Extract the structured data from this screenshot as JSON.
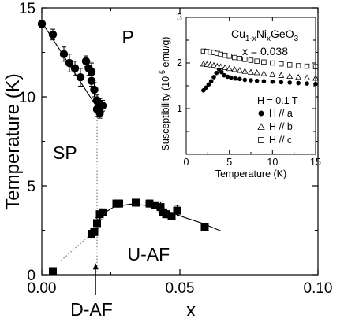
{
  "chart_data": [
    {
      "type": "scatter",
      "xlabel": "x",
      "ylabel": "Temperature (K)",
      "xlim": [
        0,
        0.1
      ],
      "ylim": [
        0,
        15
      ],
      "xticks": [
        0,
        0.05,
        0.1
      ],
      "xtick_labels": [
        "0.00",
        "0.05",
        "0.10"
      ],
      "yticks": [
        0,
        5,
        10,
        15
      ],
      "ytick_labels": [
        "0",
        "5",
        "10",
        "15"
      ],
      "phase_labels": [
        {
          "text": "P",
          "x": 0.029,
          "y": 13.0
        },
        {
          "text": "SP",
          "x": 0.004,
          "y": 6.5
        },
        {
          "text": "U-AF",
          "x": 0.031,
          "y": 0.8
        }
      ],
      "annotation": {
        "text": "D-AF",
        "x": 0.018,
        "y": -2.3,
        "arrow_to": [
          0.0195,
          0.65
        ]
      },
      "series": [
        {
          "marker": "circle",
          "points": [
            [
              0.0,
              14.1,
              0.2
            ],
            [
              0.004,
              13.5,
              0.3
            ],
            [
              0.008,
              12.4,
              0.4
            ],
            [
              0.01,
              11.9,
              0.5
            ],
            [
              0.012,
              11.6,
              0.4
            ],
            [
              0.014,
              11.1,
              0.5
            ],
            [
              0.016,
              12.0,
              0.3
            ],
            [
              0.017,
              11.6,
              0.4
            ],
            [
              0.018,
              11.4,
              0.5
            ],
            [
              0.018,
              10.9,
              0.3
            ],
            [
              0.019,
              10.4,
              0.4
            ],
            [
              0.02,
              9.8,
              0.3
            ],
            [
              0.02,
              9.3,
              0.4
            ],
            [
              0.021,
              9.6,
              0.3
            ],
            [
              0.021,
              9.1,
              0.3
            ],
            [
              0.022,
              9.5,
              0.3
            ]
          ]
        },
        {
          "marker": "square",
          "points": [
            [
              0.004,
              0.2,
              0
            ],
            [
              0.018,
              2.3,
              0.2
            ],
            [
              0.019,
              2.4,
              0.2
            ],
            [
              0.02,
              2.9,
              0.3
            ],
            [
              0.021,
              3.4,
              0.3
            ],
            [
              0.022,
              3.5,
              0.2
            ],
            [
              0.027,
              4.0,
              0.2
            ],
            [
              0.028,
              4.0,
              0.2
            ],
            [
              0.034,
              4.05,
              0.2
            ],
            [
              0.039,
              4.0,
              0.2
            ],
            [
              0.041,
              3.9,
              0.2
            ],
            [
              0.043,
              3.8,
              0.3
            ],
            [
              0.044,
              3.5,
              0.2
            ],
            [
              0.045,
              3.4,
              0.2
            ],
            [
              0.047,
              3.3,
              0.2
            ],
            [
              0.049,
              3.6,
              0.3
            ],
            [
              0.059,
              2.7,
              0
            ]
          ]
        }
      ],
      "fit_curves": [
        {
          "style": "solid",
          "points": [
            [
              0.0,
              14.2
            ],
            [
              0.02,
              9.4
            ]
          ]
        },
        {
          "style": "dotted",
          "points": [
            [
              0.02,
              9.4
            ],
            [
              0.02,
              0
            ]
          ]
        },
        {
          "style": "dotted",
          "points": [
            [
              0.007,
              0.8
            ],
            [
              0.018,
              2.3
            ]
          ]
        },
        {
          "style": "solid",
          "points": [
            [
              0.018,
              2.3
            ],
            [
              0.022,
              3.4
            ],
            [
              0.026,
              3.8
            ],
            [
              0.032,
              3.97
            ],
            [
              0.038,
              3.9
            ],
            [
              0.045,
              3.6
            ],
            [
              0.052,
              3.2
            ],
            [
              0.058,
              2.9
            ],
            [
              0.065,
              2.45
            ]
          ]
        }
      ]
    },
    {
      "type": "scatter",
      "title_lines": [
        "Cu1-xNixGeO3",
        "x = 0.038"
      ],
      "formula_parts": [
        "Cu",
        "1-x",
        "Ni",
        "x",
        "GeO",
        "3"
      ],
      "title_line2": "x = 0.038",
      "xlabel": "Temperature (K)",
      "ylabel": "Susceptibility (10",
      "ylabel_sup": "-5",
      "ylabel_tail": " emu/g)",
      "xlim": [
        0,
        15
      ],
      "ylim": [
        0,
        3
      ],
      "xticks": [
        0,
        5,
        10,
        15
      ],
      "xtick_labels": [
        "0",
        "5",
        "10",
        "15"
      ],
      "yticks": [
        1,
        2,
        3
      ],
      "ytick_labels": [
        "1",
        "2",
        "3"
      ],
      "field_label": "H = 0.1 T",
      "series": [
        {
          "name": "H // a",
          "marker": "filled-circle",
          "x": [
            2.0,
            2.3,
            2.6,
            2.9,
            3.2,
            3.5,
            3.8,
            4.1,
            4.4,
            4.8,
            5.2,
            5.7,
            6.2,
            6.8,
            7.5,
            8.2,
            9.0,
            10.0,
            11.0,
            12.0,
            13.0,
            14.0,
            15.0
          ],
          "y": [
            1.4,
            1.46,
            1.53,
            1.6,
            1.69,
            1.78,
            1.86,
            1.8,
            1.73,
            1.7,
            1.68,
            1.66,
            1.65,
            1.63,
            1.62,
            1.61,
            1.6,
            1.59,
            1.58,
            1.57,
            1.56,
            1.55,
            1.54
          ]
        },
        {
          "name": "H // b",
          "marker": "open-triangle",
          "x": [
            2.0,
            2.4,
            2.8,
            3.2,
            3.6,
            4.0,
            4.5,
            5.0,
            5.6,
            6.2,
            6.8,
            7.5,
            8.2,
            9.0,
            10.0,
            11.0,
            12.0,
            13.0,
            14.0,
            15.0
          ],
          "y": [
            1.98,
            1.97,
            1.96,
            1.95,
            1.93,
            1.92,
            1.9,
            1.88,
            1.86,
            1.84,
            1.82,
            1.8,
            1.79,
            1.77,
            1.75,
            1.73,
            1.71,
            1.69,
            1.68,
            1.67
          ]
        },
        {
          "name": "H // c",
          "marker": "open-square",
          "x": [
            2.0,
            2.4,
            2.8,
            3.2,
            3.6,
            4.0,
            4.5,
            5.0,
            5.6,
            6.2,
            6.8,
            7.5,
            8.2,
            9.0,
            10.0,
            11.0,
            12.0,
            13.0,
            14.0,
            15.0
          ],
          "y": [
            2.26,
            2.25,
            2.24,
            2.23,
            2.21,
            2.19,
            2.17,
            2.15,
            2.12,
            2.1,
            2.08,
            2.06,
            2.04,
            2.02,
            2.0,
            1.98,
            1.96,
            1.94,
            1.93,
            1.92
          ]
        }
      ]
    }
  ]
}
